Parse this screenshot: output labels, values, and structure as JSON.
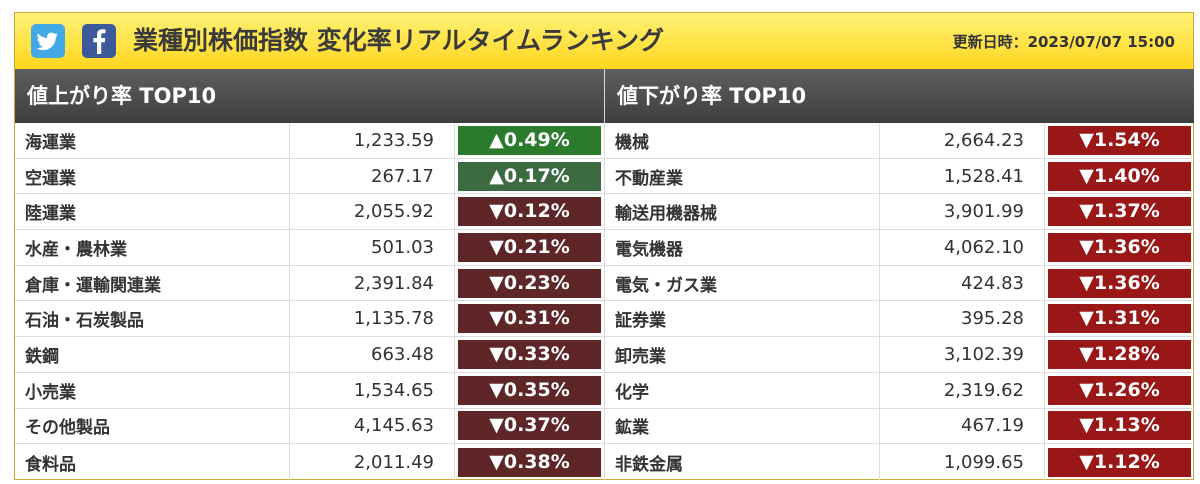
{
  "header": {
    "title": "業種別株価指数 変化率リアルタイムランキング",
    "updated": "更新日時：2023/07/07 15:00",
    "twitter_icon": "twitter-bird-icon",
    "facebook_icon": "facebook-f-icon"
  },
  "gainers": {
    "heading": "値上がり率 TOP10",
    "rows": [
      {
        "name": "海運業",
        "price": "1,233.59",
        "change": "▲0.49%"
      },
      {
        "name": "空運業",
        "price": "267.17",
        "change": "▲0.17%"
      },
      {
        "name": "陸運業",
        "price": "2,055.92",
        "change": "▼0.12%"
      },
      {
        "name": "水産・農林業",
        "price": "501.03",
        "change": "▼0.21%"
      },
      {
        "name": "倉庫・運輸関連業",
        "price": "2,391.84",
        "change": "▼0.23%"
      },
      {
        "name": "石油・石炭製品",
        "price": "1,135.78",
        "change": "▼0.31%"
      },
      {
        "name": "鉄鋼",
        "price": "663.48",
        "change": "▼0.33%"
      },
      {
        "name": "小売業",
        "price": "1,534.65",
        "change": "▼0.35%"
      },
      {
        "name": "その他製品",
        "price": "4,145.63",
        "change": "▼0.37%"
      },
      {
        "name": "食料品",
        "price": "2,011.49",
        "change": "▼0.38%"
      }
    ]
  },
  "losers": {
    "heading": "値下がり率 TOP10",
    "rows": [
      {
        "name": "機械",
        "price": "2,664.23",
        "change": "▼1.54%"
      },
      {
        "name": "不動産業",
        "price": "1,528.41",
        "change": "▼1.40%"
      },
      {
        "name": "輸送用機器械",
        "price": "3,901.99",
        "change": "▼1.37%"
      },
      {
        "name": "電気機器",
        "price": "4,062.10",
        "change": "▼1.36%"
      },
      {
        "name": "電気・ガス業",
        "price": "424.83",
        "change": "▼1.36%"
      },
      {
        "name": "証券業",
        "price": "395.28",
        "change": "▼1.31%"
      },
      {
        "name": "卸売業",
        "price": "3,102.39",
        "change": "▼1.28%"
      },
      {
        "name": "化学",
        "price": "2,319.62",
        "change": "▼1.26%"
      },
      {
        "name": "鉱業",
        "price": "467.19",
        "change": "▼1.13%"
      },
      {
        "name": "非鉄金属",
        "price": "1,099.65",
        "change": "▼1.12%"
      }
    ]
  },
  "colors": {
    "header_gradient_top": "#fff276",
    "header_gradient_bottom": "#ffd61e",
    "up_strong": "#2c7a2c",
    "up_mild": "#3c6b41",
    "down_mild": "#5e2627",
    "down_strong": "#991717"
  }
}
